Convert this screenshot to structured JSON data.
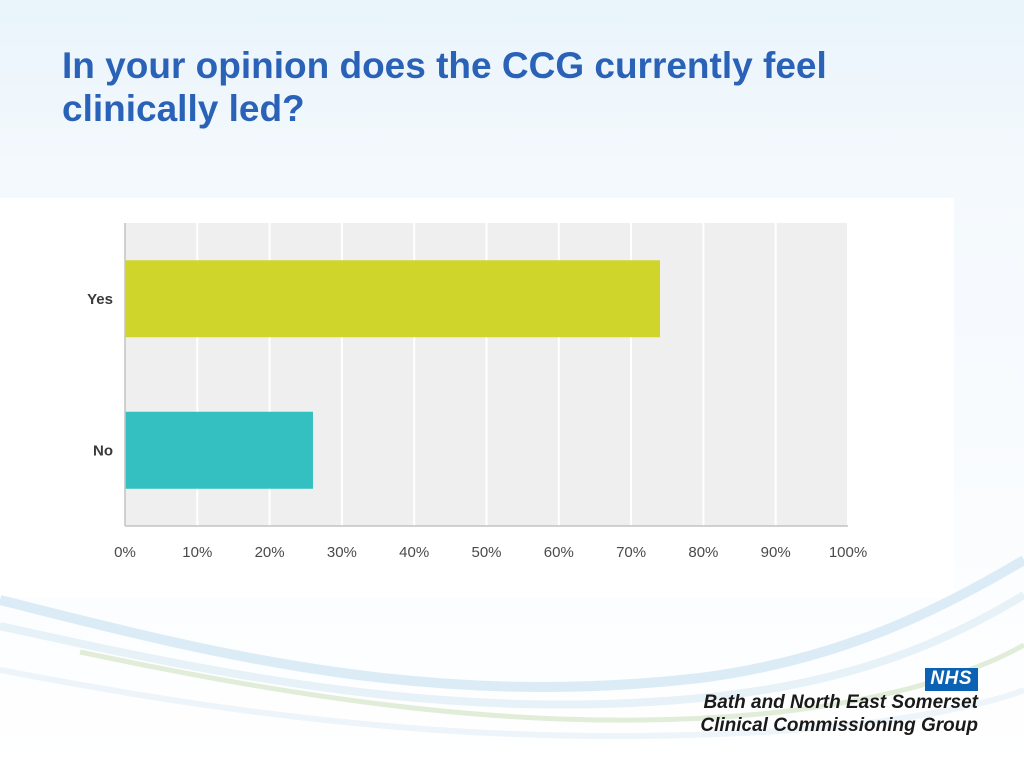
{
  "slide": {
    "title": "In your opinion does the CCG currently feel clinically led?"
  },
  "branding": {
    "logo_text": "NHS",
    "org_line1": "Bath and North East Somerset",
    "org_line2": "Clinical Commissioning Group",
    "logo_color": "#0b62b5"
  },
  "chart_data": {
    "type": "bar",
    "orientation": "horizontal",
    "categories": [
      "Yes",
      "No"
    ],
    "values": [
      74,
      26
    ],
    "units": "%",
    "colors": [
      "#cfd52b",
      "#34bfc1"
    ],
    "xlim": [
      0,
      100
    ],
    "xticks": [
      "0%",
      "10%",
      "20%",
      "30%",
      "40%",
      "50%",
      "60%",
      "70%",
      "80%",
      "90%",
      "100%"
    ],
    "grid": true,
    "legend": "none"
  }
}
